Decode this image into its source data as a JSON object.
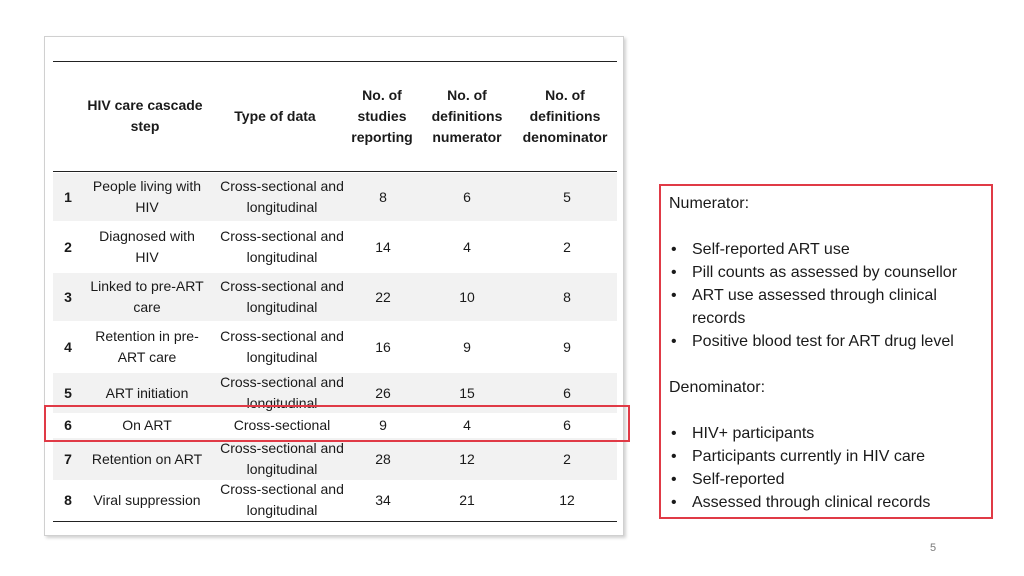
{
  "table": {
    "headers": {
      "step": "HIV care cascade step",
      "type": "Type of data",
      "studies": "No. of studies reporting",
      "num_defs": "No. of definitions numerator",
      "den_defs": "No. of definitions denominator"
    },
    "rows": [
      {
        "num": "1",
        "step": "People living with HIV",
        "type": "Cross-sectional and longitudinal",
        "studies": "8",
        "num_defs": "6",
        "den_defs": "5"
      },
      {
        "num": "2",
        "step": "Diagnosed with HIV",
        "type": "Cross-sectional and longitudinal",
        "studies": "14",
        "num_defs": "4",
        "den_defs": "2"
      },
      {
        "num": "3",
        "step": "Linked to pre-ART care",
        "type": "Cross-sectional and longitudinal",
        "studies": "22",
        "num_defs": "10",
        "den_defs": "8"
      },
      {
        "num": "4",
        "step": "Retention in pre-ART care",
        "type": "Cross-sectional and longitudinal",
        "studies": "16",
        "num_defs": "9",
        "den_defs": "9"
      },
      {
        "num": "5",
        "step": "ART initiation",
        "type": "Cross-sectional and longitudinal",
        "studies": "26",
        "num_defs": "15",
        "den_defs": "6"
      },
      {
        "num": "6",
        "step": "On ART",
        "type": "Cross-sectional",
        "studies": "9",
        "num_defs": "4",
        "den_defs": "6"
      },
      {
        "num": "7",
        "step": "Retention on ART",
        "type": "Cross-sectional and longitudinal",
        "studies": "28",
        "num_defs": "12",
        "den_defs": "2"
      },
      {
        "num": "8",
        "step": "Viral suppression",
        "type": "Cross-sectional and longitudinal",
        "studies": "34",
        "num_defs": "21",
        "den_defs": "12"
      }
    ]
  },
  "notes": {
    "numerator_heading": "Numerator:",
    "numerator_items": [
      "Self-reported ART use",
      "Pill counts as assessed by counsellor",
      "ART use assessed through clinical records",
      "Positive blood test for ART drug level"
    ],
    "denominator_heading": "Denominator:",
    "denominator_items": [
      "HIV+ participants",
      "Participants currently in HIV care",
      "Self-reported",
      "Assessed through clinical records"
    ]
  },
  "page_number": "5",
  "colors": {
    "highlight": "#e03a46",
    "row_shade": "#f2f2f2"
  }
}
